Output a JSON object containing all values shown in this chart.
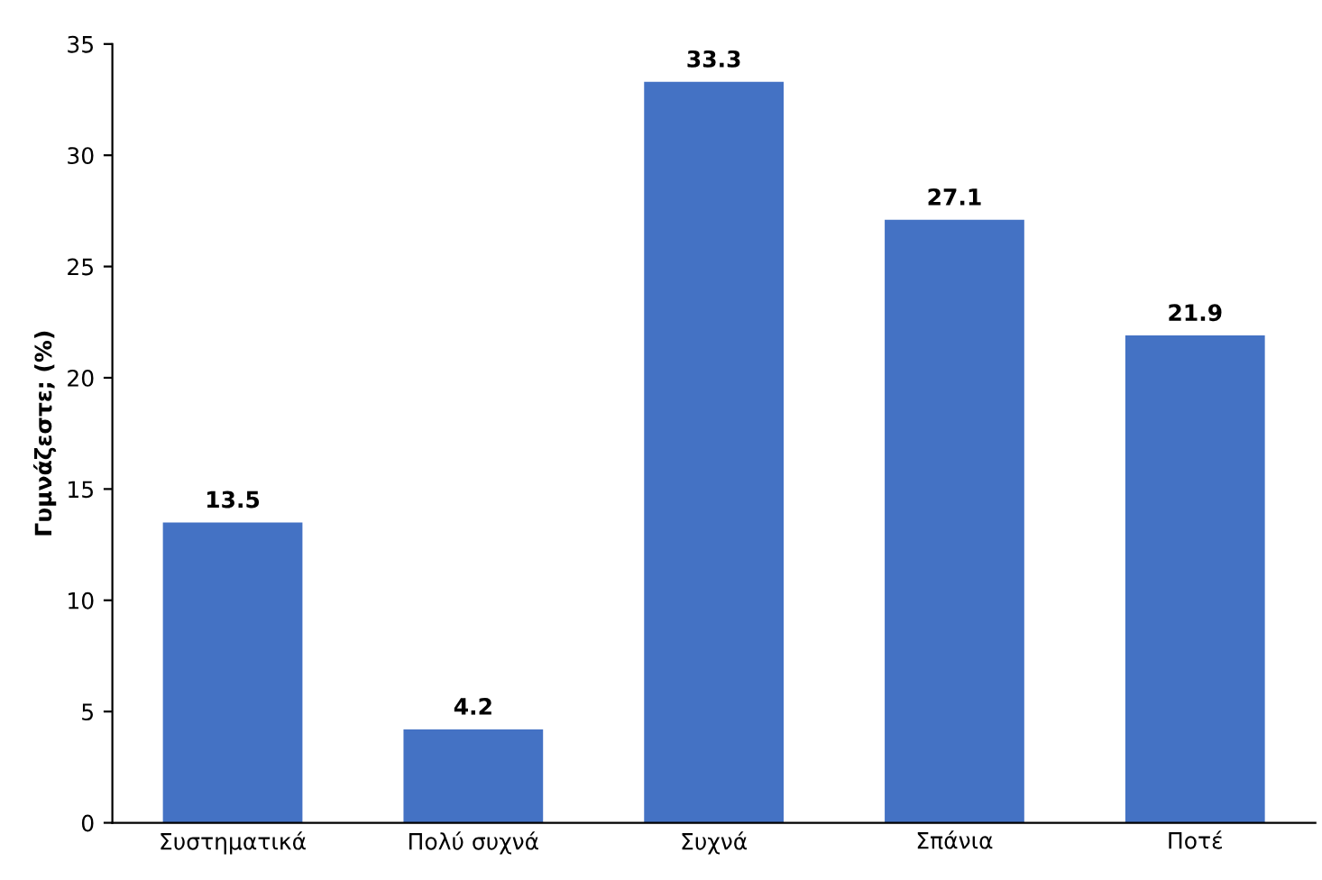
{
  "chart_data": {
    "type": "bar",
    "ylabel": "Γυμνάζεστε; (%)",
    "categories": [
      "Συστηματικά",
      "Πολύ συχνά",
      "Συχνά",
      "Σπάνια",
      "Ποτέ"
    ],
    "values": [
      13.5,
      4.2,
      33.3,
      27.1,
      21.9
    ],
    "color": "#4472c4",
    "ylim": [
      0,
      35
    ],
    "yticks": [
      0,
      5,
      10,
      15,
      20,
      25,
      30,
      35
    ],
    "grid": false,
    "data_labels": true
  }
}
